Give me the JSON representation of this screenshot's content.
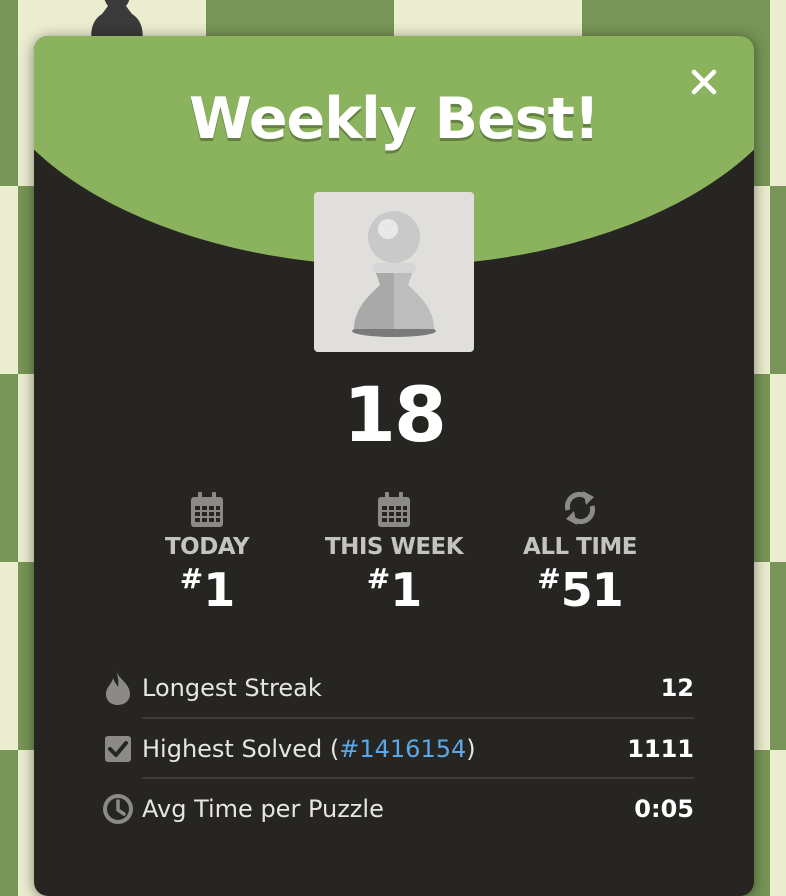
{
  "modal": {
    "title": "Weekly Best!",
    "score": "18"
  },
  "ranks": [
    {
      "label": "TODAY",
      "hash": "#",
      "value": "1",
      "icon": "calendar-icon"
    },
    {
      "label": "THIS WEEK",
      "hash": "#",
      "value": "1",
      "icon": "calendar-icon"
    },
    {
      "label": "ALL TIME",
      "hash": "#",
      "value": "51",
      "icon": "refresh-icon"
    }
  ],
  "stats": {
    "streak": {
      "label": "Longest Streak",
      "value": "12",
      "icon": "flame-icon"
    },
    "highest": {
      "label_prefix": "Highest Solved (",
      "link": "#1416154",
      "label_suffix": ")",
      "value": "1111",
      "icon": "checkbox-icon"
    },
    "avg_time": {
      "label": "Avg Time per Puzzle",
      "value": "0:05",
      "icon": "clock-icon"
    }
  },
  "colors": {
    "header": "#8bb35d",
    "panel": "#262522",
    "link": "#5ba7e8",
    "board_light": "#ebecd0",
    "board_dark": "#779556"
  }
}
